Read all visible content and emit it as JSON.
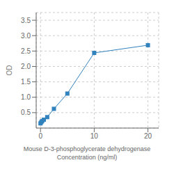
{
  "chart_data": {
    "type": "line",
    "xlabel": [
      "Mouse D-3-phosphoglycerate dehydrogenase",
      "Concentration (ng/ml)"
    ],
    "ylabel": "OD",
    "x": [
      0,
      0.156,
      0.313,
      0.625,
      1.25,
      2.5,
      5,
      10,
      20
    ],
    "values": [
      0.152,
      0.193,
      0.228,
      0.272,
      0.355,
      0.624,
      1.12,
      2.44,
      2.69
    ],
    "marker": "square",
    "line_style": "solid",
    "xlim": [
      -0.8,
      22
    ],
    "ylim": [
      0,
      3.75
    ],
    "xticks": [
      0,
      10,
      20
    ],
    "yticks": [
      0.5,
      {
        "value": 1.0,
        "label": "1.0"
      },
      1.5,
      {
        "value": 2.0,
        "label": "2.0"
      },
      2.5,
      {
        "value": 3.0,
        "label": "3.0"
      },
      3.5
    ],
    "grid": true
  }
}
